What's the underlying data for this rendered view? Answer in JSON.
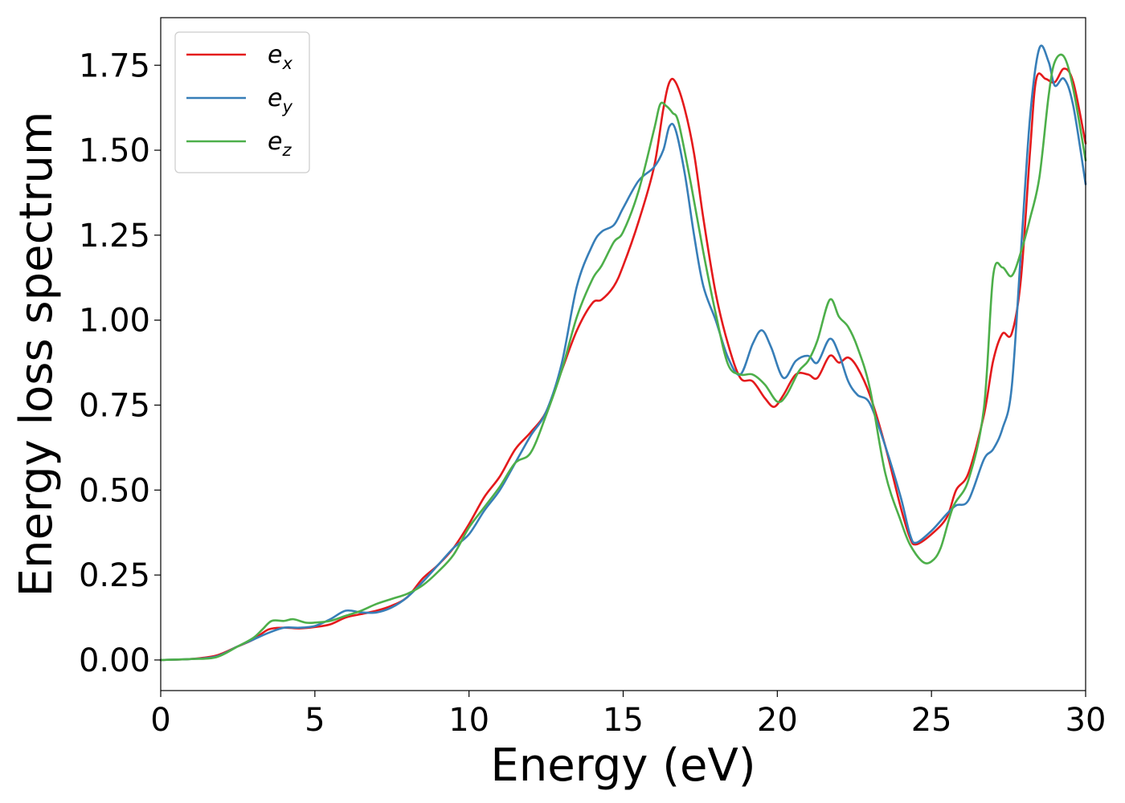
{
  "chart_data": {
    "type": "line",
    "xlabel": "Energy (eV)",
    "ylabel": "Energy loss spectrum",
    "xlim": [
      0,
      30
    ],
    "ylim": [
      -0.09,
      1.89
    ],
    "xticks": [
      0,
      5,
      10,
      15,
      20,
      25,
      30
    ],
    "xtick_labels": [
      "0",
      "5",
      "10",
      "15",
      "20",
      "25",
      "30"
    ],
    "yticks": [
      0,
      0.25,
      0.5,
      0.75,
      1.0,
      1.25,
      1.5,
      1.75
    ],
    "ytick_labels": [
      "0.00",
      "0.25",
      "0.50",
      "0.75",
      "1.00",
      "1.25",
      "1.50",
      "1.75"
    ],
    "grid": false,
    "legend": "top-left",
    "series": [
      {
        "name": "e",
        "sub": "x",
        "color": "#e41a1c",
        "points": [
          [
            0,
            0
          ],
          [
            1,
            0.003
          ],
          [
            1.8,
            0.013
          ],
          [
            2.5,
            0.04
          ],
          [
            3,
            0.06
          ],
          [
            3.5,
            0.09
          ],
          [
            4,
            0.095
          ],
          [
            4.5,
            0.093
          ],
          [
            5,
            0.097
          ],
          [
            5.5,
            0.105
          ],
          [
            6,
            0.125
          ],
          [
            6.5,
            0.135
          ],
          [
            7,
            0.145
          ],
          [
            7.5,
            0.16
          ],
          [
            8,
            0.185
          ],
          [
            8.5,
            0.24
          ],
          [
            9,
            0.28
          ],
          [
            9.5,
            0.33
          ],
          [
            10,
            0.4
          ],
          [
            10.5,
            0.48
          ],
          [
            11,
            0.54
          ],
          [
            11.5,
            0.62
          ],
          [
            12,
            0.67
          ],
          [
            12.5,
            0.73
          ],
          [
            13,
            0.85
          ],
          [
            13.5,
            0.97
          ],
          [
            14,
            1.05
          ],
          [
            14.3,
            1.06
          ],
          [
            14.7,
            1.1
          ],
          [
            15,
            1.16
          ],
          [
            15.5,
            1.29
          ],
          [
            16,
            1.45
          ],
          [
            16.3,
            1.62
          ],
          [
            16.5,
            1.7
          ],
          [
            16.7,
            1.7
          ],
          [
            17,
            1.62
          ],
          [
            17.3,
            1.49
          ],
          [
            17.6,
            1.3
          ],
          [
            18,
            1.08
          ],
          [
            18.4,
            0.93
          ],
          [
            18.8,
            0.83
          ],
          [
            19.2,
            0.82
          ],
          [
            19.6,
            0.77
          ],
          [
            19.9,
            0.745
          ],
          [
            20.2,
            0.78
          ],
          [
            20.6,
            0.84
          ],
          [
            21,
            0.84
          ],
          [
            21.3,
            0.83
          ],
          [
            21.7,
            0.895
          ],
          [
            22,
            0.875
          ],
          [
            22.3,
            0.89
          ],
          [
            22.6,
            0.86
          ],
          [
            23,
            0.78
          ],
          [
            23.5,
            0.63
          ],
          [
            24,
            0.45
          ],
          [
            24.3,
            0.36
          ],
          [
            24.5,
            0.34
          ],
          [
            25,
            0.37
          ],
          [
            25.5,
            0.42
          ],
          [
            25.8,
            0.5
          ],
          [
            26.2,
            0.55
          ],
          [
            26.7,
            0.72
          ],
          [
            27,
            0.88
          ],
          [
            27.3,
            0.96
          ],
          [
            27.6,
            0.96
          ],
          [
            27.9,
            1.12
          ],
          [
            28.2,
            1.5
          ],
          [
            28.4,
            1.71
          ],
          [
            28.7,
            1.71
          ],
          [
            29,
            1.7
          ],
          [
            29.3,
            1.74
          ],
          [
            29.6,
            1.7
          ],
          [
            30,
            1.52
          ]
        ]
      },
      {
        "name": "e",
        "sub": "y",
        "color": "#377eb8",
        "points": [
          [
            0,
            0
          ],
          [
            1,
            0.003
          ],
          [
            1.8,
            0.01
          ],
          [
            2.5,
            0.04
          ],
          [
            3,
            0.06
          ],
          [
            3.5,
            0.08
          ],
          [
            4,
            0.095
          ],
          [
            4.5,
            0.095
          ],
          [
            5,
            0.1
          ],
          [
            5.5,
            0.12
          ],
          [
            6,
            0.145
          ],
          [
            6.5,
            0.14
          ],
          [
            7,
            0.14
          ],
          [
            7.5,
            0.155
          ],
          [
            8,
            0.185
          ],
          [
            8.5,
            0.23
          ],
          [
            9,
            0.28
          ],
          [
            9.5,
            0.33
          ],
          [
            10,
            0.37
          ],
          [
            10.5,
            0.44
          ],
          [
            11,
            0.5
          ],
          [
            11.5,
            0.58
          ],
          [
            12,
            0.66
          ],
          [
            12.5,
            0.73
          ],
          [
            13,
            0.87
          ],
          [
            13.5,
            1.1
          ],
          [
            14,
            1.22
          ],
          [
            14.3,
            1.26
          ],
          [
            14.7,
            1.28
          ],
          [
            15,
            1.33
          ],
          [
            15.5,
            1.41
          ],
          [
            16,
            1.45
          ],
          [
            16.3,
            1.5
          ],
          [
            16.5,
            1.57
          ],
          [
            16.7,
            1.56
          ],
          [
            17,
            1.43
          ],
          [
            17.3,
            1.25
          ],
          [
            17.6,
            1.1
          ],
          [
            18,
            1.0
          ],
          [
            18.4,
            0.89
          ],
          [
            18.8,
            0.84
          ],
          [
            19.2,
            0.93
          ],
          [
            19.5,
            0.97
          ],
          [
            19.8,
            0.92
          ],
          [
            20.2,
            0.83
          ],
          [
            20.6,
            0.88
          ],
          [
            21,
            0.895
          ],
          [
            21.3,
            0.875
          ],
          [
            21.7,
            0.945
          ],
          [
            22,
            0.9
          ],
          [
            22.3,
            0.82
          ],
          [
            22.6,
            0.78
          ],
          [
            23,
            0.755
          ],
          [
            23.5,
            0.63
          ],
          [
            24,
            0.48
          ],
          [
            24.3,
            0.37
          ],
          [
            24.5,
            0.345
          ],
          [
            25,
            0.38
          ],
          [
            25.5,
            0.43
          ],
          [
            25.8,
            0.455
          ],
          [
            26.2,
            0.47
          ],
          [
            26.7,
            0.59
          ],
          [
            27,
            0.62
          ],
          [
            27.3,
            0.68
          ],
          [
            27.6,
            0.8
          ],
          [
            27.9,
            1.2
          ],
          [
            28.2,
            1.6
          ],
          [
            28.5,
            1.8
          ],
          [
            28.8,
            1.76
          ],
          [
            29,
            1.69
          ],
          [
            29.3,
            1.71
          ],
          [
            29.6,
            1.63
          ],
          [
            30,
            1.4
          ]
        ]
      },
      {
        "name": "e",
        "sub": "z",
        "color": "#4daf4a",
        "points": [
          [
            0,
            0
          ],
          [
            1,
            0.003
          ],
          [
            1.8,
            0.008
          ],
          [
            2.5,
            0.04
          ],
          [
            3,
            0.065
          ],
          [
            3.3,
            0.09
          ],
          [
            3.6,
            0.115
          ],
          [
            4,
            0.115
          ],
          [
            4.3,
            0.12
          ],
          [
            4.7,
            0.11
          ],
          [
            5,
            0.11
          ],
          [
            5.5,
            0.115
          ],
          [
            6,
            0.13
          ],
          [
            6.5,
            0.145
          ],
          [
            7,
            0.165
          ],
          [
            7.5,
            0.18
          ],
          [
            8,
            0.195
          ],
          [
            8.5,
            0.22
          ],
          [
            9,
            0.26
          ],
          [
            9.5,
            0.31
          ],
          [
            10,
            0.39
          ],
          [
            10.5,
            0.45
          ],
          [
            11,
            0.51
          ],
          [
            11.5,
            0.58
          ],
          [
            12,
            0.61
          ],
          [
            12.5,
            0.72
          ],
          [
            13,
            0.85
          ],
          [
            13.5,
            1.01
          ],
          [
            14,
            1.12
          ],
          [
            14.3,
            1.16
          ],
          [
            14.7,
            1.23
          ],
          [
            15,
            1.26
          ],
          [
            15.5,
            1.38
          ],
          [
            16,
            1.56
          ],
          [
            16.2,
            1.635
          ],
          [
            16.4,
            1.63
          ],
          [
            16.6,
            1.61
          ],
          [
            16.8,
            1.58
          ],
          [
            17.2,
            1.4
          ],
          [
            17.6,
            1.2
          ],
          [
            18,
            1.02
          ],
          [
            18.4,
            0.87
          ],
          [
            18.8,
            0.84
          ],
          [
            19.2,
            0.84
          ],
          [
            19.6,
            0.81
          ],
          [
            20,
            0.76
          ],
          [
            20.3,
            0.78
          ],
          [
            20.7,
            0.85
          ],
          [
            21,
            0.88
          ],
          [
            21.3,
            0.94
          ],
          [
            21.7,
            1.06
          ],
          [
            22,
            1.01
          ],
          [
            22.3,
            0.98
          ],
          [
            22.6,
            0.92
          ],
          [
            23,
            0.8
          ],
          [
            23.5,
            0.55
          ],
          [
            24,
            0.41
          ],
          [
            24.3,
            0.34
          ],
          [
            24.7,
            0.29
          ],
          [
            25,
            0.29
          ],
          [
            25.3,
            0.33
          ],
          [
            25.7,
            0.45
          ],
          [
            26.2,
            0.53
          ],
          [
            26.7,
            0.74
          ],
          [
            27,
            1.13
          ],
          [
            27.3,
            1.155
          ],
          [
            27.6,
            1.13
          ],
          [
            27.9,
            1.2
          ],
          [
            28.2,
            1.3
          ],
          [
            28.5,
            1.42
          ],
          [
            28.8,
            1.66
          ],
          [
            29,
            1.76
          ],
          [
            29.3,
            1.775
          ],
          [
            29.6,
            1.68
          ],
          [
            30,
            1.47
          ]
        ]
      }
    ]
  }
}
